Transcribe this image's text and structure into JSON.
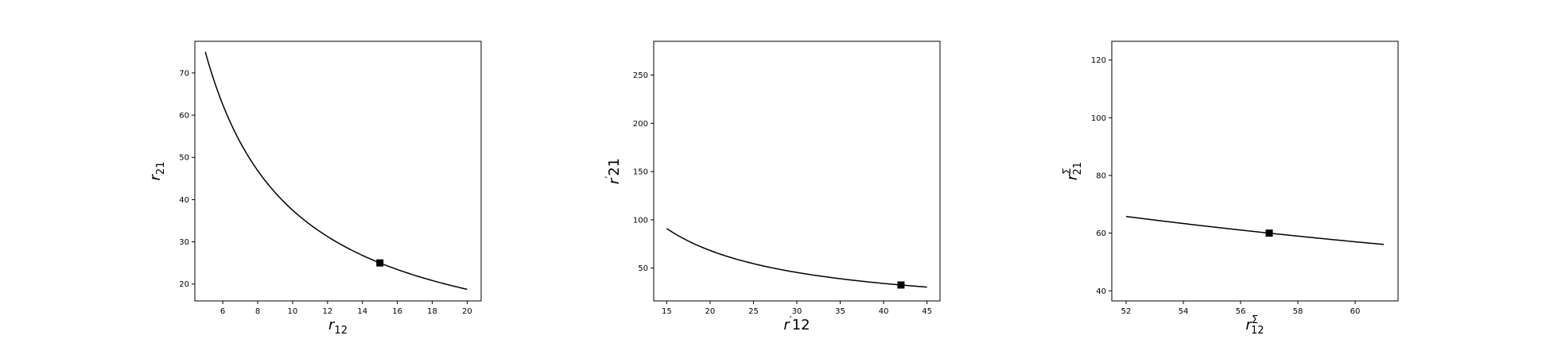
{
  "chart_data": [
    {
      "type": "line",
      "xlabel": {
        "base": "r",
        "prime": "",
        "sup": "",
        "sub": "12"
      },
      "ylabel": {
        "base": "r",
        "prime": "",
        "sup": "",
        "sub": "21"
      },
      "xlim": [
        4.4,
        20.8
      ],
      "ylim": [
        16,
        77.5
      ],
      "xticks": [
        6,
        8,
        10,
        12,
        14,
        16,
        18,
        20
      ],
      "yticks": [
        20,
        30,
        40,
        50,
        60,
        70
      ],
      "curve_product": 375,
      "x_range": [
        5,
        20
      ],
      "marker": {
        "x": 15,
        "y": 25
      }
    },
    {
      "type": "line",
      "xlabel": {
        "base": "r",
        "prime": "′",
        "sup": "",
        "sub": "12"
      },
      "ylabel": {
        "base": "r",
        "prime": "′",
        "sup": "",
        "sub": "21"
      },
      "xlim": [
        13.5,
        46.5
      ],
      "ylim": [
        16,
        285
      ],
      "xticks": [
        15,
        20,
        25,
        30,
        35,
        40,
        45
      ],
      "yticks": [
        50,
        100,
        150,
        200,
        250
      ],
      "curve_product": 1365,
      "x_range": [
        15,
        45
      ],
      "marker": {
        "x": 42,
        "y": 32.5
      }
    },
    {
      "type": "line",
      "xlabel": {
        "base": "r",
        "prime": "",
        "sup": "Σ",
        "sub": "12"
      },
      "ylabel": {
        "base": "r",
        "prime": "",
        "sup": "Σ",
        "sub": "21"
      },
      "xlim": [
        51.5,
        61.5
      ],
      "ylim": [
        36.5,
        126.5
      ],
      "xticks": [
        52,
        54,
        56,
        58,
        60
      ],
      "yticks": [
        40,
        60,
        80,
        100,
        120
      ],
      "curve_product": 3420,
      "x_range": [
        52,
        61
      ],
      "marker": {
        "x": 57,
        "y": 60
      }
    }
  ]
}
